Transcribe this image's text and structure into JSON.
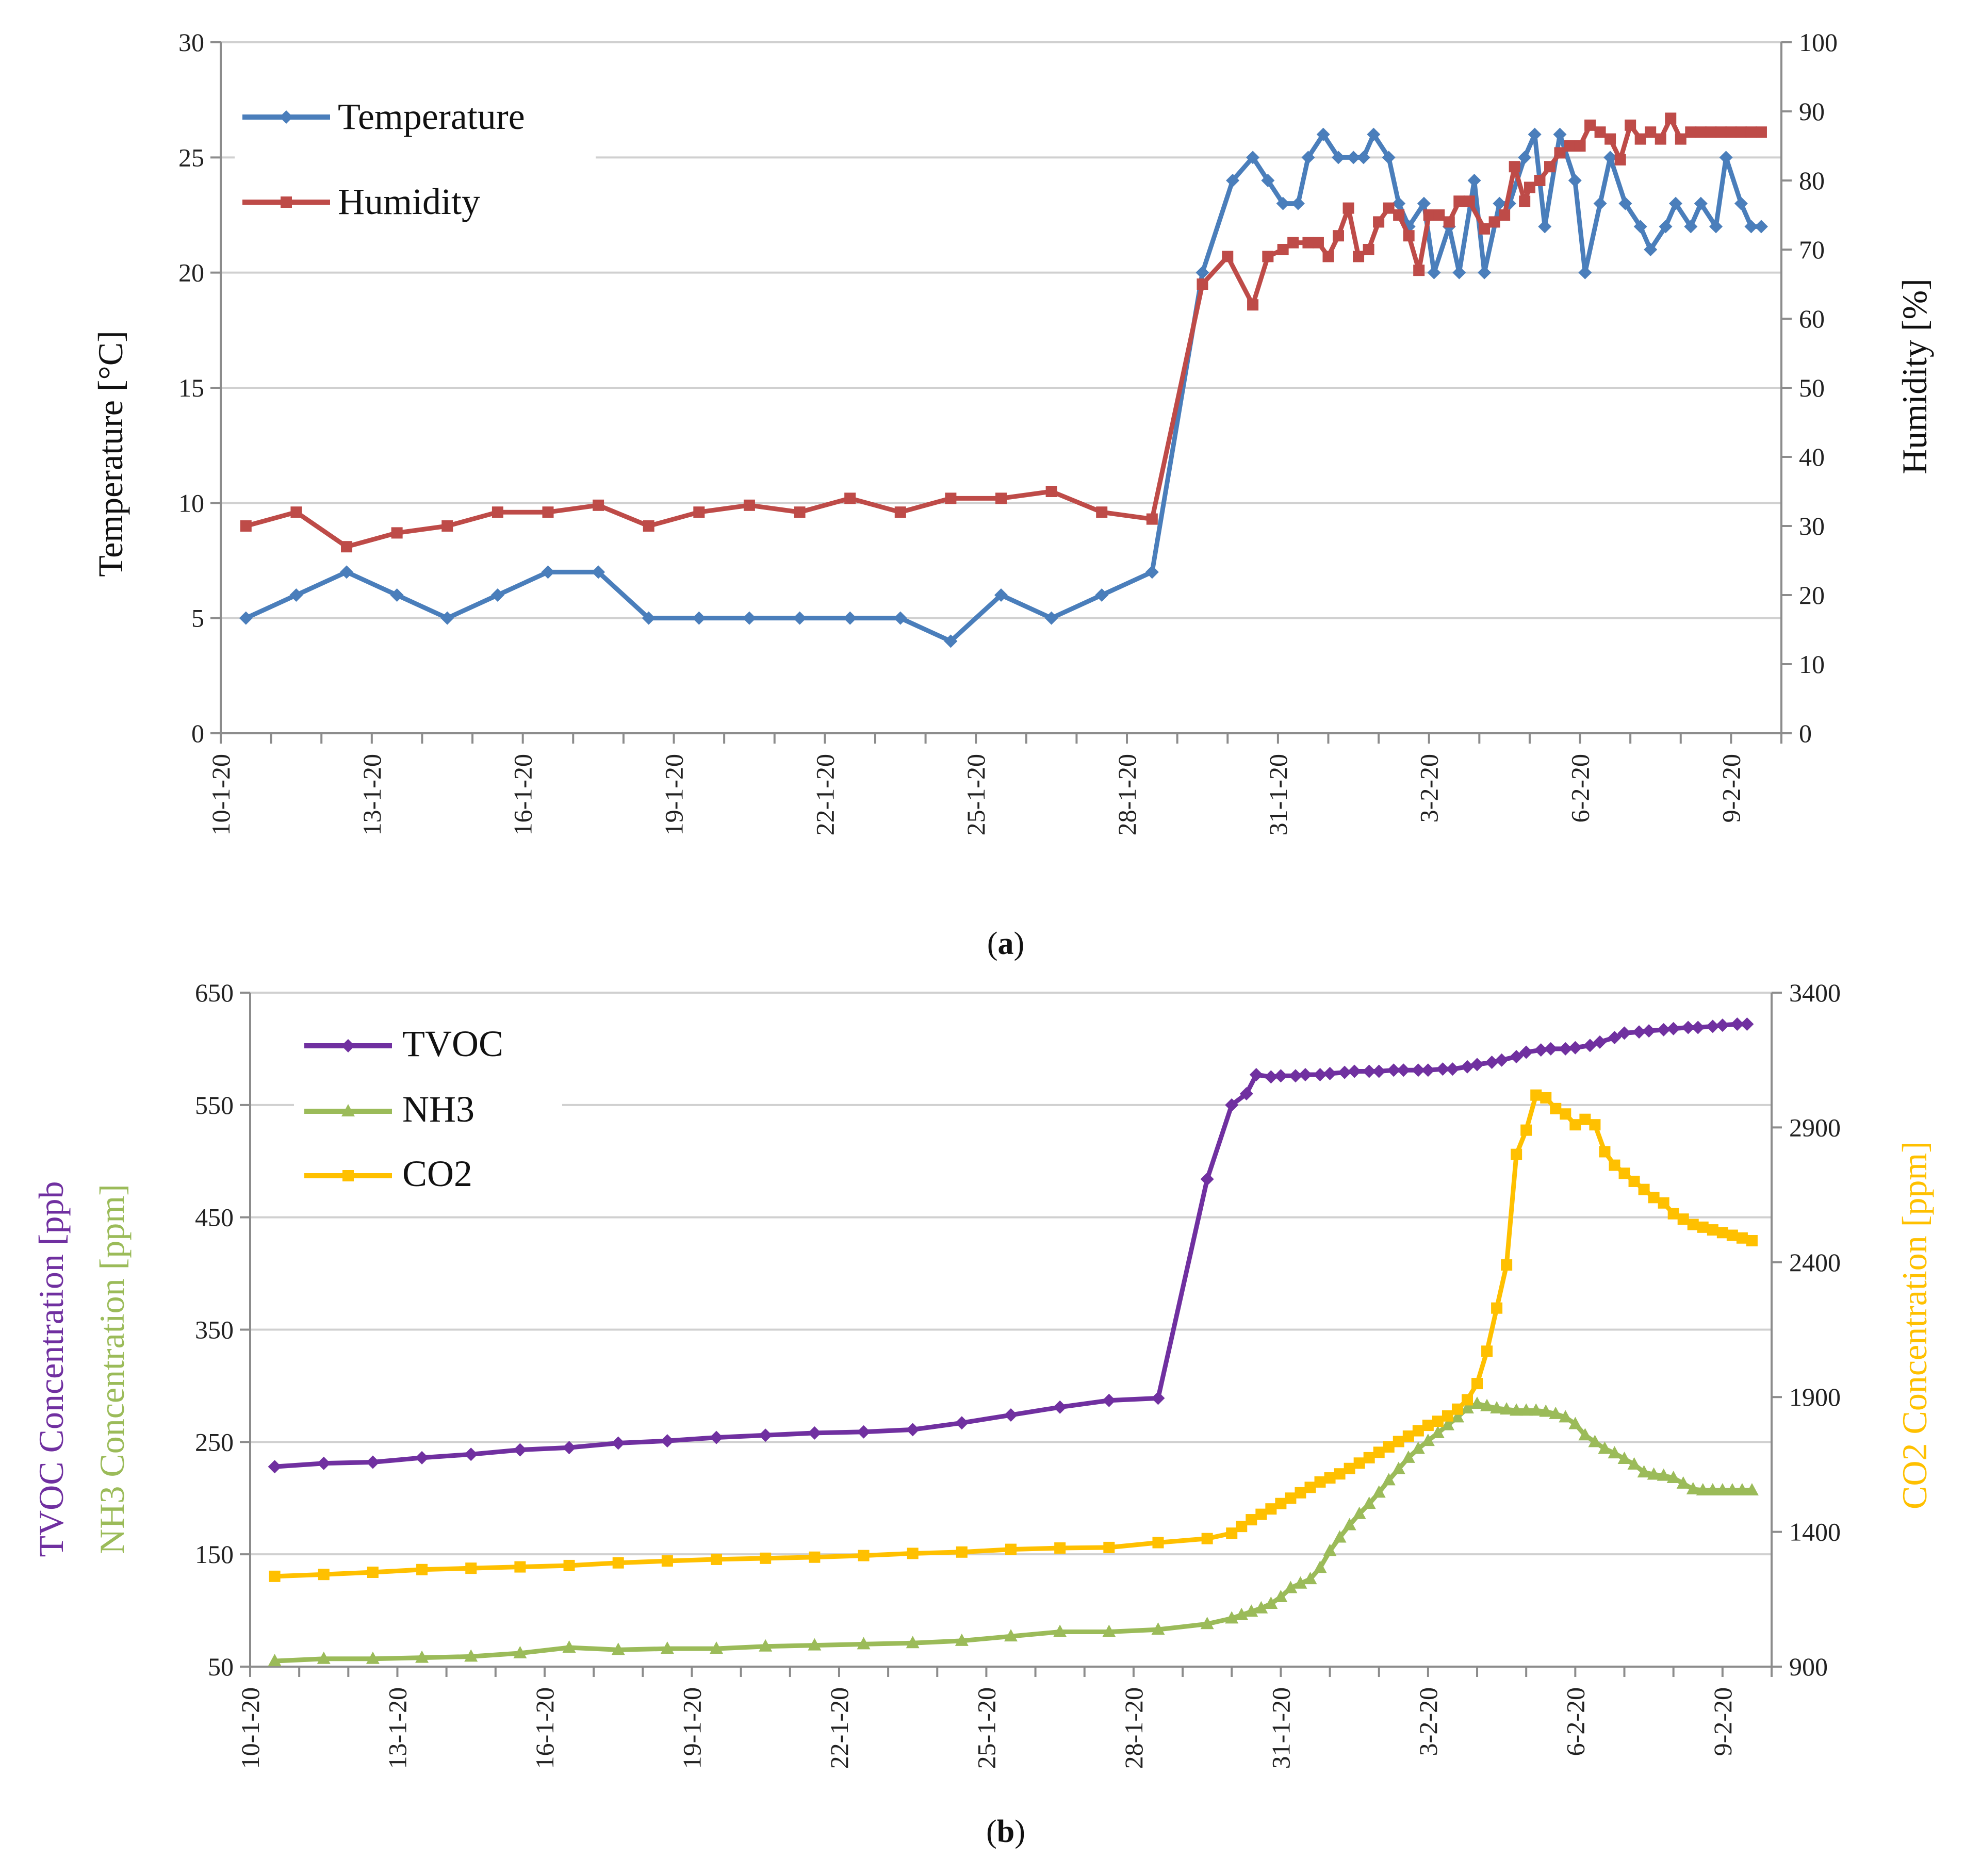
{
  "figure": {
    "caption_a_open": "(",
    "caption_a_letter": "a",
    "caption_a_close": ")",
    "caption_b_open": "(",
    "caption_b_letter": "b",
    "caption_b_close": ")"
  },
  "date_ticks": [
    "10-1-20",
    "13-1-20",
    "16-1-20",
    "19-1-20",
    "22-1-20",
    "25-1-20",
    "28-1-20",
    "31-1-20",
    "3-2-20",
    "6-2-20",
    "9-2-20"
  ],
  "chart_data": [
    {
      "id": "a",
      "type": "line",
      "title": "",
      "xlabel": "",
      "ylabel": "Temperature [°C]",
      "y2label": "Humidity [%]",
      "x_range_days": [
        0,
        31
      ],
      "ylim": [
        0,
        30
      ],
      "yticks": [
        0,
        5,
        10,
        15,
        20,
        25,
        30
      ],
      "y2lim": [
        0,
        100
      ],
      "y2ticks": [
        0,
        10,
        20,
        30,
        40,
        50,
        60,
        70,
        80,
        90,
        100
      ],
      "grid": true,
      "legend_position": "top-left",
      "series": [
        {
          "name": "Temperature",
          "axis": "left",
          "color": "#4a7ebb",
          "marker": "diamond",
          "x": [
            0.5,
            1.5,
            2.5,
            3.5,
            4.5,
            5.5,
            6.5,
            7.5,
            8.5,
            9.5,
            10.5,
            11.5,
            12.5,
            13.5,
            14.5,
            15.5,
            16.5,
            17.5,
            18.5,
            19.5,
            20.1,
            20.5,
            20.8,
            21.1,
            21.4,
            21.6,
            21.9,
            22.2,
            22.5,
            22.7,
            22.9,
            23.2,
            23.4,
            23.6,
            23.9,
            24.1,
            24.4,
            24.6,
            24.9,
            25.1,
            25.4,
            25.6,
            25.9,
            26.1,
            26.3,
            26.6,
            26.9,
            27.1,
            27.4,
            27.6,
            27.9,
            28.2,
            28.4,
            28.7,
            28.9,
            29.2,
            29.4,
            29.7,
            29.9,
            30.2,
            30.4,
            30.6
          ],
          "y": [
            5,
            6,
            7,
            6,
            5,
            6,
            7,
            7,
            5,
            5,
            5,
            5,
            5,
            5,
            4,
            6,
            5,
            6,
            7,
            20,
            24,
            25,
            24,
            23,
            23,
            25,
            26,
            25,
            25,
            25,
            26,
            25,
            23,
            22,
            23,
            20,
            22,
            20,
            24,
            20,
            23,
            23,
            25,
            26,
            22,
            26,
            24,
            20,
            23,
            25,
            23,
            22,
            21,
            22,
            23,
            22,
            23,
            22,
            25,
            23,
            22,
            22
          ]
        },
        {
          "name": "Humidity",
          "axis": "right",
          "color": "#be4b48",
          "marker": "square",
          "x": [
            0.5,
            1.5,
            2.5,
            3.5,
            4.5,
            5.5,
            6.5,
            7.5,
            8.5,
            9.5,
            10.5,
            11.5,
            12.5,
            13.5,
            14.5,
            15.5,
            16.5,
            17.5,
            18.5,
            19.5,
            20.0,
            20.5,
            20.8,
            21.1,
            21.3,
            21.6,
            21.8,
            22.0,
            22.2,
            22.4,
            22.6,
            22.8,
            23.0,
            23.2,
            23.4,
            23.6,
            23.8,
            24.0,
            24.2,
            24.4,
            24.6,
            24.8,
            25.1,
            25.3,
            25.5,
            25.7,
            25.9,
            26.0,
            26.2,
            26.4,
            26.6,
            26.8,
            27.0,
            27.2,
            27.4,
            27.6,
            27.8,
            28.0,
            28.2,
            28.4,
            28.6,
            28.8,
            29.0,
            29.2,
            29.4,
            29.6,
            29.8,
            30.0,
            30.2,
            30.4,
            30.6
          ],
          "y": [
            30,
            32,
            27,
            29,
            30,
            32,
            32,
            33,
            30,
            32,
            33,
            32,
            34,
            32,
            34,
            34,
            35,
            32,
            31,
            65,
            69,
            62,
            69,
            70,
            71,
            71,
            71,
            69,
            72,
            76,
            69,
            70,
            74,
            76,
            75,
            72,
            67,
            75,
            75,
            74,
            77,
            77,
            73,
            74,
            75,
            82,
            77,
            79,
            80,
            82,
            84,
            85,
            85,
            88,
            87,
            86,
            83,
            88,
            86,
            87,
            86,
            89,
            86,
            87,
            87,
            87,
            87,
            87,
            87,
            87,
            87
          ]
        }
      ]
    },
    {
      "id": "b",
      "type": "line",
      "title": "",
      "xlabel": "",
      "ylabel_parts": [
        "TVOC Concentration [ppb",
        "NH3 Concentration [ppm]"
      ],
      "y2label": "CO2 Concentration [ppm]",
      "x_range_days": [
        0,
        31
      ],
      "ylim": [
        50,
        650
      ],
      "yticks": [
        50,
        150,
        250,
        350,
        450,
        550,
        650
      ],
      "y2lim": [
        900,
        3400
      ],
      "y2ticks": [
        900,
        1400,
        1900,
        2400,
        2900,
        3400
      ],
      "grid": true,
      "legend_position": "top-left",
      "series": [
        {
          "name": "TVOC",
          "axis": "left",
          "color": "#7030a0",
          "marker": "diamond",
          "x": [
            0.5,
            1.5,
            2.5,
            3.5,
            4.5,
            5.5,
            6.5,
            7.5,
            8.5,
            9.5,
            10.5,
            11.5,
            12.5,
            13.5,
            14.5,
            15.5,
            16.5,
            17.5,
            18.5,
            19.5,
            20.0,
            20.3,
            20.5,
            20.8,
            21.0,
            21.3,
            21.5,
            21.8,
            22.0,
            22.3,
            22.5,
            22.8,
            23.0,
            23.3,
            23.5,
            23.8,
            24.0,
            24.3,
            24.5,
            24.8,
            25.0,
            25.3,
            25.5,
            25.8,
            26.0,
            26.3,
            26.5,
            26.8,
            27.0,
            27.3,
            27.5,
            27.8,
            28.0,
            28.3,
            28.5,
            28.8,
            29.0,
            29.3,
            29.5,
            29.8,
            30.0,
            30.3,
            30.5
          ],
          "y": [
            228,
            231,
            232,
            236,
            239,
            243,
            245,
            249,
            251,
            254,
            256,
            258,
            259,
            261,
            267,
            274,
            281,
            287,
            289,
            484,
            550,
            560,
            577,
            575,
            576,
            576,
            577,
            577,
            578,
            579,
            580,
            580,
            580,
            581,
            581,
            581,
            581,
            582,
            582,
            584,
            586,
            588,
            590,
            593,
            597,
            599,
            600,
            600,
            601,
            603,
            606,
            610,
            614,
            615,
            616,
            617,
            618,
            619,
            619,
            620,
            621,
            622,
            622
          ]
        },
        {
          "name": "NH3",
          "axis": "left",
          "color": "#9bbb59",
          "marker": "triangle",
          "x": [
            0.5,
            1.5,
            2.5,
            3.5,
            4.5,
            5.5,
            6.5,
            7.5,
            8.5,
            9.5,
            10.5,
            11.5,
            12.5,
            13.5,
            14.5,
            15.5,
            16.5,
            17.5,
            18.5,
            19.5,
            20.0,
            20.2,
            20.4,
            20.6,
            20.8,
            21.0,
            21.2,
            21.4,
            21.6,
            21.8,
            22.0,
            22.2,
            22.4,
            22.6,
            22.8,
            23.0,
            23.2,
            23.4,
            23.6,
            23.8,
            24.0,
            24.2,
            24.4,
            24.6,
            24.8,
            25.0,
            25.2,
            25.4,
            25.6,
            25.8,
            26.0,
            26.2,
            26.4,
            26.6,
            26.8,
            27.0,
            27.2,
            27.4,
            27.6,
            27.8,
            28.0,
            28.2,
            28.4,
            28.6,
            28.8,
            29.0,
            29.2,
            29.4,
            29.6,
            29.8,
            30.0,
            30.2,
            30.4,
            30.6
          ],
          "y": [
            55,
            57,
            57,
            58,
            59,
            62,
            67,
            65,
            66,
            66,
            68,
            69,
            70,
            71,
            73,
            77,
            81,
            81,
            83,
            88,
            93,
            96,
            99,
            102,
            106,
            112,
            120,
            124,
            128,
            138,
            153,
            165,
            176,
            186,
            195,
            205,
            216,
            226,
            236,
            244,
            251,
            258,
            265,
            272,
            280,
            284,
            282,
            280,
            279,
            278,
            278,
            278,
            277,
            275,
            272,
            266,
            256,
            250,
            244,
            240,
            235,
            230,
            223,
            221,
            220,
            218,
            213,
            208,
            207,
            207,
            207,
            207,
            207,
            207
          ]
        },
        {
          "name": "CO2",
          "axis": "right",
          "color": "#ffc000",
          "marker": "square",
          "x": [
            0.5,
            1.5,
            2.5,
            3.5,
            4.5,
            5.5,
            6.5,
            7.5,
            8.5,
            9.5,
            10.5,
            11.5,
            12.5,
            13.5,
            14.5,
            15.5,
            16.5,
            17.5,
            18.5,
            19.5,
            20.0,
            20.2,
            20.4,
            20.6,
            20.8,
            21.0,
            21.2,
            21.4,
            21.6,
            21.8,
            22.0,
            22.2,
            22.4,
            22.6,
            22.8,
            23.0,
            23.2,
            23.4,
            23.6,
            23.8,
            24.0,
            24.2,
            24.4,
            24.6,
            24.8,
            25.0,
            25.2,
            25.4,
            25.6,
            25.8,
            26.0,
            26.2,
            26.4,
            26.6,
            26.8,
            27.0,
            27.2,
            27.4,
            27.6,
            27.8,
            28.0,
            28.2,
            28.4,
            28.6,
            28.8,
            29.0,
            29.2,
            29.4,
            29.6,
            29.8,
            30.0,
            30.2,
            30.4,
            30.6
          ],
          "y": [
            1235,
            1242,
            1250,
            1260,
            1265,
            1270,
            1275,
            1285,
            1292,
            1298,
            1302,
            1306,
            1312,
            1320,
            1325,
            1335,
            1340,
            1342,
            1360,
            1375,
            1395,
            1420,
            1445,
            1465,
            1485,
            1505,
            1525,
            1545,
            1565,
            1585,
            1600,
            1615,
            1635,
            1655,
            1675,
            1695,
            1715,
            1735,
            1755,
            1775,
            1795,
            1810,
            1830,
            1855,
            1890,
            1950,
            2070,
            2230,
            2390,
            2800,
            2890,
            3020,
            3010,
            2970,
            2950,
            2910,
            2930,
            2910,
            2810,
            2760,
            2730,
            2700,
            2670,
            2640,
            2620,
            2580,
            2560,
            2540,
            2530,
            2520,
            2510,
            2500,
            2490,
            2480
          ]
        }
      ]
    }
  ]
}
